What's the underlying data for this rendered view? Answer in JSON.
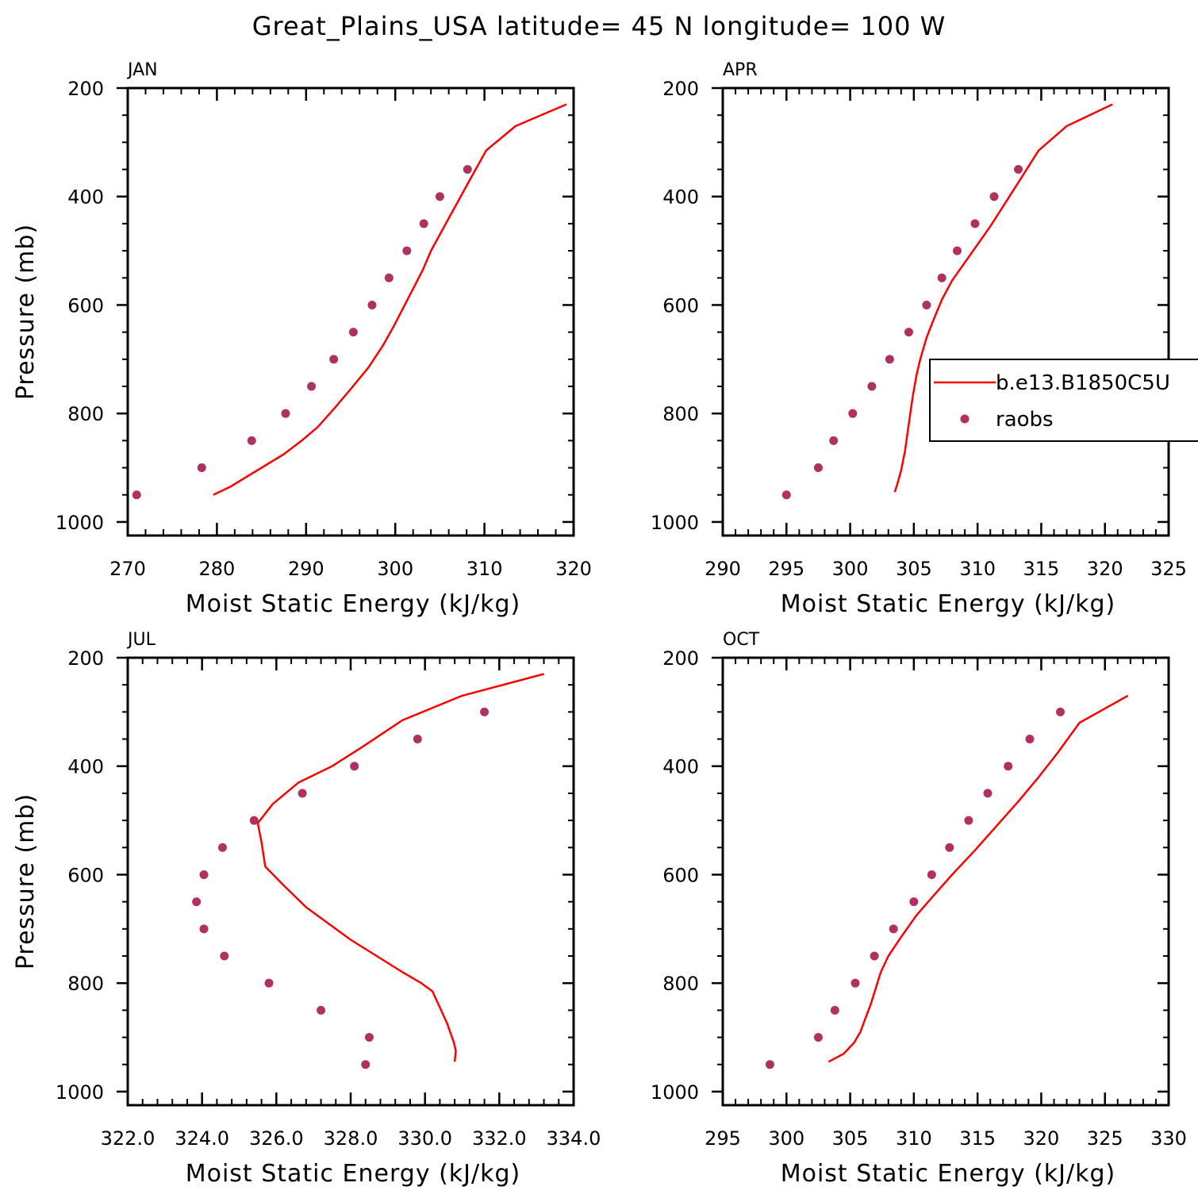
{
  "title": "Great_Plains_USA   latitude= 45 N longitude= 100 W",
  "colors": {
    "model": "#ff0000",
    "obs": "#b03060",
    "axis": "#000000"
  },
  "legend": {
    "model_label": "b.e13.B1850C5U",
    "obs_label": "raobs",
    "panel_index": 1
  },
  "chart_data": [
    {
      "type": "scatter",
      "month": "JAN",
      "xlabel": "Moist Static Energy (kJ/kg)",
      "ylabel": "Pressure (mb)",
      "xlim": [
        270,
        320
      ],
      "ylim": [
        1025,
        200
      ],
      "xticks": [
        270,
        280,
        290,
        300,
        310,
        320
      ],
      "xtick_labels": [
        "270",
        "280",
        "290",
        "300",
        "310",
        "320"
      ],
      "xminor": 2,
      "yticks": [
        200,
        400,
        600,
        800,
        1000
      ],
      "ytick_labels": [
        "200",
        "400",
        "600",
        "800",
        "1000"
      ],
      "series": [
        {
          "name": "b.e13.B1850C5U",
          "kind": "line",
          "x": [
            279.6,
            281.5,
            284.5,
            287.5,
            289.5,
            291.3,
            293.2,
            295.0,
            297.0,
            298.6,
            299.8,
            300.9,
            302.0,
            303.1,
            304.0,
            305.0,
            306.0,
            307.0,
            308.0,
            310.2,
            313.5,
            319.2
          ],
          "y": [
            950,
            935,
            905,
            875,
            850,
            825,
            790,
            755,
            715,
            675,
            640,
            605,
            570,
            535,
            500,
            470,
            440,
            410,
            380,
            315,
            270,
            230
          ]
        },
        {
          "name": "raobs",
          "kind": "scatter",
          "x": [
            271.0,
            278.3,
            283.9,
            287.7,
            290.6,
            293.1,
            295.3,
            297.4,
            299.3,
            301.3,
            303.2,
            305.0,
            308.1
          ],
          "y": [
            950,
            900,
            850,
            800,
            750,
            700,
            650,
            600,
            550,
            500,
            450,
            400,
            350
          ]
        }
      ]
    },
    {
      "type": "scatter",
      "month": "APR",
      "xlabel": "Moist Static Energy (kJ/kg)",
      "ylabel": "",
      "xlim": [
        290,
        325
      ],
      "ylim": [
        1025,
        200
      ],
      "xticks": [
        290,
        295,
        300,
        305,
        310,
        315,
        320,
        325
      ],
      "xtick_labels": [
        "290",
        "295",
        "300",
        "305",
        "310",
        "315",
        "320",
        "325"
      ],
      "xminor": 1,
      "yticks": [
        200,
        400,
        600,
        800,
        1000
      ],
      "ytick_labels": [
        "200",
        "400",
        "600",
        "800",
        "1000"
      ],
      "series": [
        {
          "name": "b.e13.B1850C5U",
          "kind": "line",
          "x": [
            303.5,
            303.7,
            304.0,
            304.3,
            304.6,
            304.9,
            305.2,
            305.5,
            306.0,
            306.5,
            307.2,
            308.0,
            309.5,
            311.0,
            312.5,
            314.8,
            317.0,
            320.6
          ],
          "y": [
            945,
            930,
            905,
            870,
            820,
            770,
            730,
            700,
            660,
            630,
            590,
            555,
            505,
            455,
            400,
            315,
            270,
            230
          ]
        },
        {
          "name": "raobs",
          "kind": "scatter",
          "x": [
            295.0,
            297.5,
            298.7,
            300.2,
            301.7,
            303.1,
            304.6,
            306.0,
            307.2,
            308.4,
            309.8,
            311.3,
            313.2
          ],
          "y": [
            950,
            900,
            850,
            800,
            750,
            700,
            650,
            600,
            550,
            500,
            450,
            400,
            350
          ]
        }
      ]
    },
    {
      "type": "scatter",
      "month": "JUL",
      "xlabel": "Moist Static Energy (kJ/kg)",
      "ylabel": "Pressure (mb)",
      "xlim": [
        322,
        334
      ],
      "ylim": [
        1025,
        200
      ],
      "xticks": [
        322,
        324,
        326,
        328,
        330,
        332,
        334
      ],
      "xtick_labels": [
        "322.0",
        "324.0",
        "326.0",
        "328.0",
        "330.0",
        "332.0",
        "334.0"
      ],
      "xminor": 0.4,
      "yticks": [
        200,
        400,
        600,
        800,
        1000
      ],
      "ytick_labels": [
        "200",
        "400",
        "600",
        "800",
        "1000"
      ],
      "series": [
        {
          "name": "b.e13.B1850C5U",
          "kind": "line",
          "x": [
            330.8,
            330.83,
            330.78,
            330.6,
            330.4,
            330.2,
            329.9,
            329.4,
            328.7,
            328.0,
            327.4,
            326.8,
            326.2,
            325.7,
            325.6,
            325.5,
            325.9,
            326.6,
            327.5,
            328.3,
            329.4,
            331.0,
            333.2
          ],
          "y": [
            945,
            925,
            910,
            875,
            845,
            815,
            800,
            780,
            750,
            720,
            690,
            660,
            620,
            585,
            540,
            505,
            470,
            430,
            400,
            365,
            315,
            270,
            230
          ]
        },
        {
          "name": "raobs",
          "kind": "scatter",
          "x": [
            328.4,
            328.5,
            327.2,
            325.8,
            324.6,
            324.05,
            323.85,
            324.05,
            324.55,
            325.4,
            326.7,
            328.1,
            329.8,
            331.6
          ],
          "y": [
            950,
            900,
            850,
            800,
            750,
            700,
            650,
            600,
            550,
            500,
            450,
            400,
            350,
            300
          ]
        }
      ]
    },
    {
      "type": "scatter",
      "month": "OCT",
      "xlabel": "Moist Static Energy (kJ/kg)",
      "ylabel": "",
      "xlim": [
        295,
        330
      ],
      "ylim": [
        1025,
        200
      ],
      "xticks": [
        295,
        300,
        305,
        310,
        315,
        320,
        325,
        330
      ],
      "xtick_labels": [
        "295",
        "300",
        "305",
        "310",
        "315",
        "320",
        "325",
        "330"
      ],
      "xminor": 1,
      "yticks": [
        200,
        400,
        600,
        800,
        1000
      ],
      "ytick_labels": [
        "200",
        "400",
        "600",
        "800",
        "1000"
      ],
      "series": [
        {
          "name": "b.e13.B1850C5U",
          "kind": "line",
          "x": [
            303.3,
            304.5,
            305.3,
            305.8,
            306.2,
            306.6,
            307.0,
            307.4,
            308.0,
            309.0,
            310.2,
            311.5,
            313.0,
            314.8,
            316.5,
            318.2,
            319.8,
            321.3,
            323.0,
            326.8
          ],
          "y": [
            945,
            930,
            910,
            890,
            865,
            840,
            810,
            780,
            750,
            715,
            675,
            640,
            600,
            555,
            510,
            465,
            420,
            375,
            320,
            270
          ]
        },
        {
          "name": "raobs",
          "kind": "scatter",
          "x": [
            298.7,
            302.5,
            303.8,
            305.4,
            306.9,
            308.4,
            310.0,
            311.4,
            312.8,
            314.3,
            315.8,
            317.4,
            319.1,
            321.5
          ],
          "y": [
            950,
            900,
            850,
            800,
            750,
            700,
            650,
            600,
            550,
            500,
            450,
            400,
            350,
            300
          ]
        }
      ]
    }
  ]
}
